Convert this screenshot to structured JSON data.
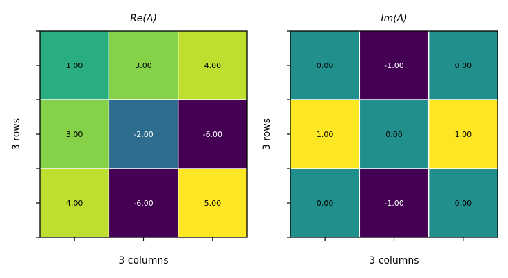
{
  "chart_data": [
    {
      "type": "heatmap",
      "title": "Re(A)",
      "xlabel": "3 columns",
      "ylabel": "3 rows",
      "colormap": "viridis",
      "values": [
        [
          1.0,
          3.0,
          4.0
        ],
        [
          3.0,
          -2.0,
          -6.0
        ],
        [
          4.0,
          -6.0,
          5.0
        ]
      ],
      "labels": [
        [
          "1.00",
          "3.00",
          "4.00"
        ],
        [
          "3.00",
          "-2.00",
          "-6.00"
        ],
        [
          "4.00",
          "-6.00",
          "5.00"
        ]
      ]
    },
    {
      "type": "heatmap",
      "title": "Im(A)",
      "xlabel": "3 columns",
      "ylabel": "3 rows",
      "colormap": "viridis",
      "values": [
        [
          0.0,
          -1.0,
          0.0
        ],
        [
          1.0,
          0.0,
          1.0
        ],
        [
          0.0,
          -1.0,
          0.0
        ]
      ],
      "labels": [
        [
          "0.00",
          "-1.00",
          "0.00"
        ],
        [
          "1.00",
          "0.00",
          "1.00"
        ],
        [
          "0.00",
          "-1.00",
          "0.00"
        ]
      ]
    }
  ]
}
